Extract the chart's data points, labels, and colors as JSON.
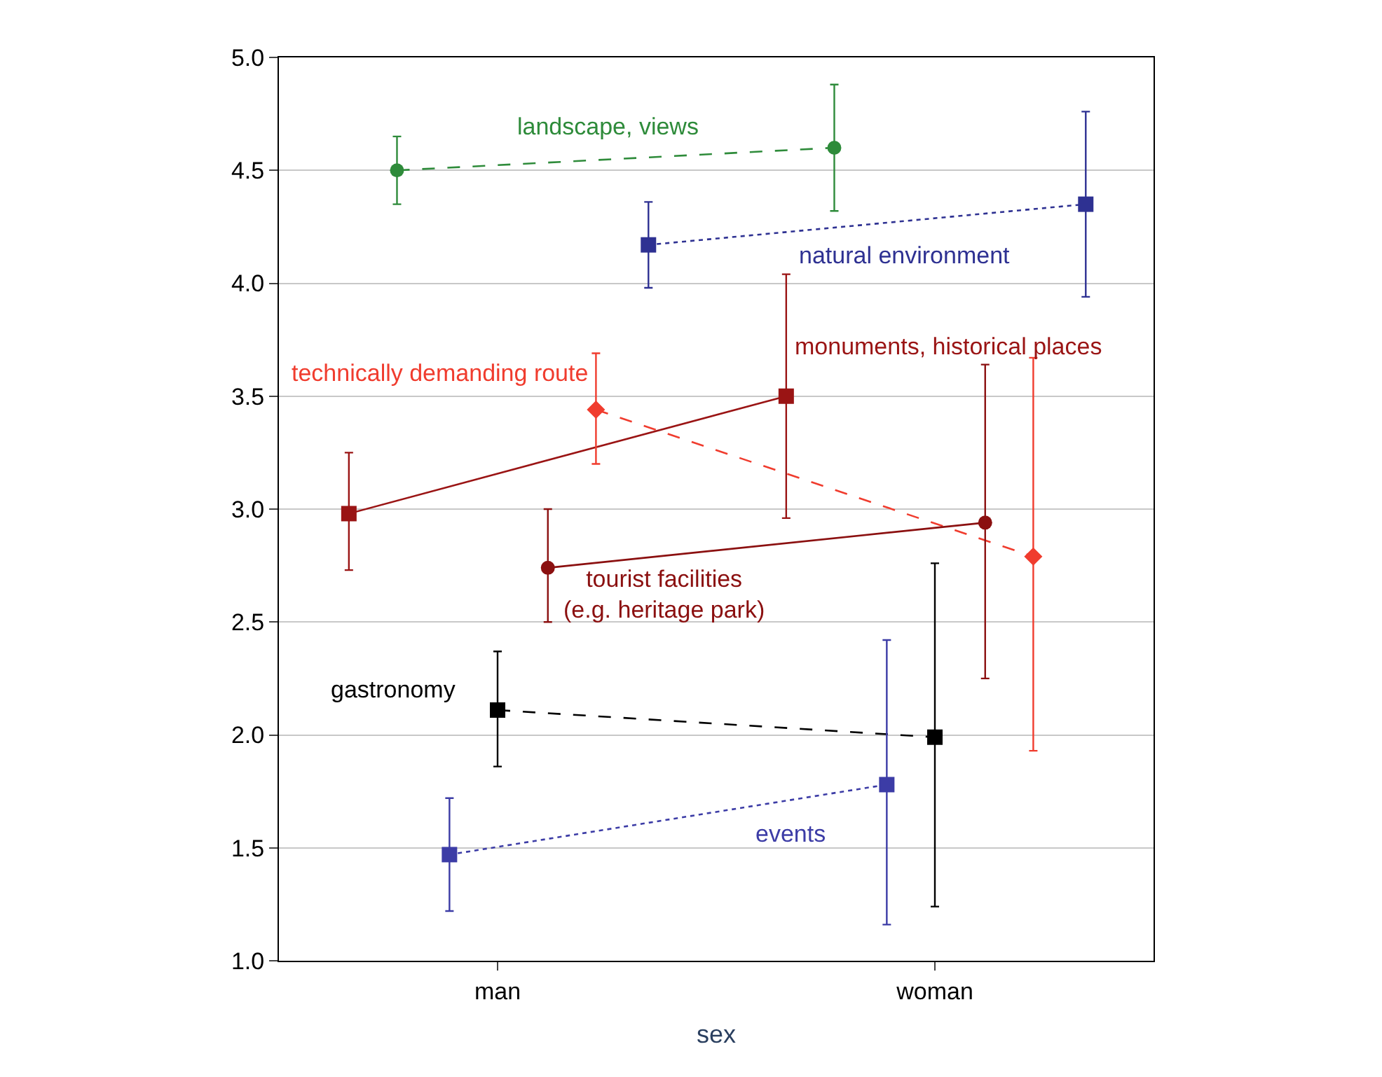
{
  "chart_data": {
    "type": "line",
    "xlabel": "sex",
    "categories": [
      "man",
      "woman"
    ],
    "ylim": [
      1.0,
      5.0
    ],
    "yticks": [
      {
        "value": 1.0,
        "label": "1.0"
      },
      {
        "value": 1.5,
        "label": "1.5"
      },
      {
        "value": 2.0,
        "label": "2.0"
      },
      {
        "value": 2.5,
        "label": "2.5"
      },
      {
        "value": 3.0,
        "label": "3.0"
      },
      {
        "value": 3.5,
        "label": "3.5"
      },
      {
        "value": 4.0,
        "label": "4.0"
      },
      {
        "value": 4.5,
        "label": "4.5"
      },
      {
        "value": 5.0,
        "label": "5.0"
      }
    ],
    "grid": "y",
    "legend": false,
    "series": [
      {
        "name": "landscape, views",
        "color": "#2e8b3a",
        "marker": "circle",
        "line_style": "dashed",
        "values": [
          4.5,
          4.6
        ],
        "errors": [
          [
            4.35,
            4.65
          ],
          [
            4.32,
            4.88
          ]
        ]
      },
      {
        "name": "natural environment",
        "color": "#2e3192",
        "marker": "square",
        "line_style": "dotted",
        "values": [
          4.17,
          4.35
        ],
        "errors": [
          [
            3.98,
            4.36
          ],
          [
            3.94,
            4.76
          ]
        ]
      },
      {
        "name": "monuments, historical places",
        "color": "#9a1414",
        "marker": "square",
        "line_style": "solid",
        "values": [
          2.98,
          3.5
        ],
        "errors": [
          [
            2.73,
            3.25
          ],
          [
            2.96,
            4.04
          ]
        ]
      },
      {
        "name": "technically demanding route",
        "color": "#f03c2e",
        "marker": "diamond",
        "line_style": "dashed",
        "values": [
          3.44,
          2.79
        ],
        "errors": [
          [
            3.2,
            3.69
          ],
          [
            1.93,
            3.67
          ]
        ]
      },
      {
        "name": "tourist facilities\n(e.g. heritage park)",
        "color": "#8b1010",
        "marker": "circle",
        "line_style": "solid",
        "values": [
          2.74,
          2.94
        ],
        "errors": [
          [
            2.5,
            3.0
          ],
          [
            2.25,
            3.64
          ]
        ]
      },
      {
        "name": "gastronomy",
        "color": "#000000",
        "marker": "square",
        "line_style": "dashed",
        "values": [
          2.11,
          1.99
        ],
        "errors": [
          [
            1.86,
            2.37
          ],
          [
            1.24,
            2.76
          ]
        ]
      },
      {
        "name": "events",
        "color": "#3c3ca6",
        "marker": "square",
        "line_style": "dotted",
        "values": [
          1.47,
          1.78
        ],
        "errors": [
          [
            1.22,
            1.72
          ],
          [
            1.16,
            2.42
          ]
        ]
      }
    ]
  }
}
